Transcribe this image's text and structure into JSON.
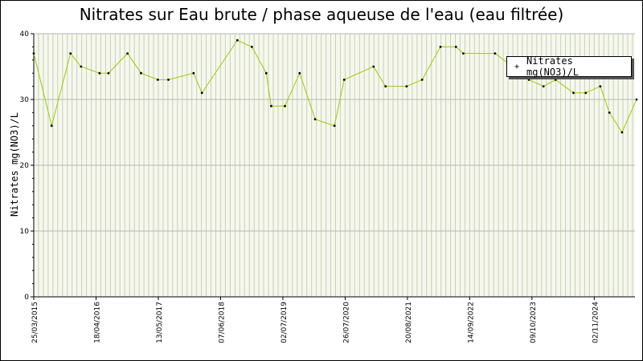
{
  "chart_data": {
    "type": "line",
    "title": "Nitrates sur Eau brute / phase aqueuse de l'eau (eau filtrée)",
    "ylabel": "Nitrates mg(NO3)/L",
    "ylim": [
      0,
      40
    ],
    "yticks": [
      "0",
      "10",
      "20",
      "30",
      "40"
    ],
    "grid": true,
    "legend_position": "top-right",
    "line_color": "#99cc00",
    "grid_color": "#c8d2b0",
    "xtick_labels": [
      "25/03/2015",
      "18/04/2016",
      "13/05/2017",
      "07/06/2018",
      "02/07/2019",
      "26/07/2020",
      "20/08/2021",
      "14/09/2022",
      "09/10/2023",
      "02/11/2024"
    ],
    "series": [
      {
        "name": "Nitrates mg(NO3)/L",
        "points": [
          [
            "2015-03-25",
            37
          ],
          [
            "2015-07-15",
            26
          ],
          [
            "2015-11-10",
            37
          ],
          [
            "2016-01-15",
            35
          ],
          [
            "2016-05-10",
            34
          ],
          [
            "2016-07-05",
            34
          ],
          [
            "2016-11-01",
            37
          ],
          [
            "2017-01-25",
            34
          ],
          [
            "2017-05-10",
            33
          ],
          [
            "2017-07-15",
            33
          ],
          [
            "2017-12-20",
            34
          ],
          [
            "2018-02-10",
            31
          ],
          [
            "2018-09-20",
            39
          ],
          [
            "2018-12-20",
            38
          ],
          [
            "2019-03-20",
            34
          ],
          [
            "2019-04-20",
            29
          ],
          [
            "2019-07-15",
            29
          ],
          [
            "2019-10-15",
            34
          ],
          [
            "2020-01-20",
            27
          ],
          [
            "2020-05-20",
            26
          ],
          [
            "2020-07-20",
            33
          ],
          [
            "2021-01-20",
            35
          ],
          [
            "2021-04-05",
            32
          ],
          [
            "2021-08-15",
            32
          ],
          [
            "2021-11-20",
            33
          ],
          [
            "2022-03-15",
            38
          ],
          [
            "2022-06-20",
            38
          ],
          [
            "2022-08-05",
            37
          ],
          [
            "2023-02-20",
            37
          ],
          [
            "2023-06-10",
            35
          ],
          [
            "2023-09-20",
            33
          ],
          [
            "2023-12-20",
            32
          ],
          [
            "2024-03-05",
            33
          ],
          [
            "2024-06-25",
            31
          ],
          [
            "2024-09-10",
            31
          ],
          [
            "2024-12-10",
            32
          ],
          [
            "2025-02-05",
            28
          ],
          [
            "2025-04-25",
            25
          ],
          [
            "2025-07-25",
            30
          ]
        ]
      }
    ]
  }
}
